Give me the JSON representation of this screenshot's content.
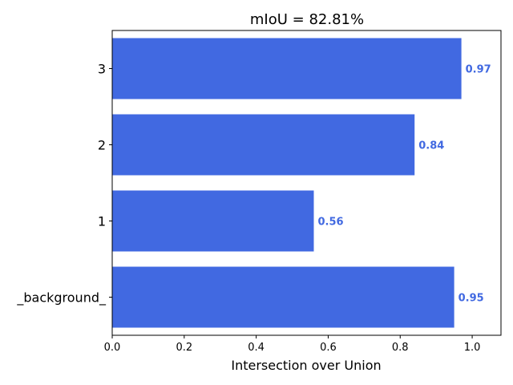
{
  "chart_data": {
    "type": "bar",
    "orientation": "horizontal",
    "title": "mIoU = 82.81%",
    "xlabel": "Intersection over Union",
    "ylabel": "",
    "categories": [
      "_background_",
      "1",
      "2",
      "3"
    ],
    "values": [
      0.95,
      0.56,
      0.84,
      0.97
    ],
    "value_labels": [
      "0.95",
      "0.56",
      "0.84",
      "0.97"
    ],
    "xlim": [
      0.0,
      1.08
    ],
    "xticks": [
      0.0,
      0.2,
      0.4,
      0.6,
      0.8,
      1.0
    ],
    "xtick_labels": [
      "0.0",
      "0.2",
      "0.4",
      "0.6",
      "0.8",
      "1.0"
    ],
    "grid": false,
    "legend": "none",
    "bar_color": "#4169e1",
    "label_color": "#4169e1"
  }
}
